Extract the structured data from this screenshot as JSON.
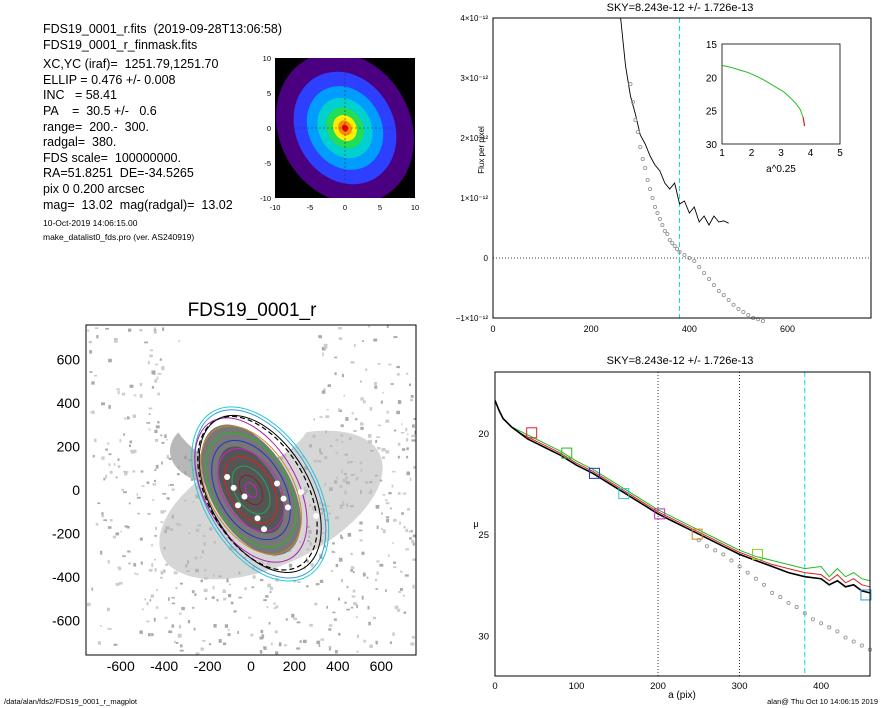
{
  "header": {
    "lines": [
      "FDS19_0001_r.fits  (2019-09-28T13:06:58)",
      "FDS19_0001_r_finmask.fits",
      "XC,YC (iraf)=  1251.79,1251.70",
      "ELLIP = 0.476 +/- 0.008",
      "INC   = 58.41",
      "PA    =  30.5 +/-   0.6",
      "range=  200.-  300.",
      "radgal=  380.",
      "FDS scale=  100000000.",
      "RA=51.8251  DE=-34.5265",
      "pix 0 0.200 arcsec",
      "mag=  13.02  mag(radgal)=  13.02"
    ],
    "date_line": "10-Oct-2019 14:06:15.00",
    "program_line": "make_datalist0_fds.pro (ver. AS240919)"
  },
  "footer": {
    "path": "/data/alan/fds2/FDS19_0001_r_magplot",
    "stamp": "alan@  Thu Oct 10 14:06:15 2019"
  },
  "colors": {
    "sky_line": "#00e0e0",
    "growth": "#22bb22",
    "profile_red": "#dd2222",
    "profile_black": "#000000",
    "profile_grey": "#888888"
  },
  "chart_data": [
    {
      "type": "heatmap",
      "id": "thumbnail",
      "xticks": [
        "-10",
        "-5",
        "0",
        "5",
        "10"
      ],
      "yticks": [
        "10",
        "5",
        "0",
        "-5",
        "-10"
      ],
      "xlim": [
        -10,
        10
      ],
      "ylim": [
        -10,
        10
      ],
      "levels": [
        "#4b0082",
        "#2d40ff",
        "#009dff",
        "#00d0d0",
        "#22dd55",
        "#ffee00",
        "#ff8800",
        "#ee0000"
      ]
    },
    {
      "type": "scatter",
      "id": "image",
      "title": "FDS19_0001_r",
      "xticks": [
        "-600",
        "-400",
        "-200",
        "0",
        "200",
        "400",
        "600"
      ],
      "yticks": [
        "600",
        "400",
        "200",
        "0",
        "-200",
        "-400",
        "-600"
      ],
      "xlim": [
        -760,
        760
      ],
      "ylim": [
        -760,
        760
      ]
    },
    {
      "type": "line",
      "id": "flux",
      "title": "SKY=8.243e-12 +/- 1.726e-13",
      "ylabel": "Flux per pixel",
      "xlim": [
        0,
        770
      ],
      "ylim": [
        -1e-12,
        4e-12
      ],
      "xticks": [
        "0",
        "200",
        "400",
        "600"
      ],
      "yticks": [
        "4×10⁻¹²",
        "3×10⁻¹²",
        "2×10⁻¹²",
        "1×10⁻¹²",
        "0",
        "−1×10⁻¹²"
      ],
      "sky_radius": 380,
      "series": [
        {
          "values_x": [
            260,
            270,
            280,
            290,
            300,
            310,
            320,
            330,
            340,
            350,
            360,
            370,
            380,
            390,
            400,
            410,
            420,
            430,
            440,
            450,
            460,
            470,
            480
          ],
          "values_y": [
            4e-12,
            3.2e-12,
            2.7e-12,
            2.4e-12,
            2.05e-12,
            1.9e-12,
            1.7e-12,
            1.55e-12,
            1.45e-12,
            1.25e-12,
            1.15e-12,
            1.25e-12,
            9e-13,
            9.5e-13,
            7.5e-13,
            8.5e-13,
            6e-13,
            7e-13,
            5.5e-13,
            7e-13,
            6e-13,
            6.2e-13,
            5.8e-13
          ]
        },
        {
          "values_x": [
            280,
            285,
            290,
            295,
            300,
            305,
            310,
            315,
            320,
            325,
            330,
            335,
            340,
            345,
            350,
            355,
            360,
            365,
            370,
            375,
            380,
            390,
            400,
            410,
            420,
            430,
            440,
            450,
            460,
            470,
            480,
            490,
            500,
            510,
            520,
            530,
            540,
            550
          ],
          "values_y": [
            2.9e-12,
            2.6e-12,
            2.3e-12,
            2.1e-12,
            1.85e-12,
            1.65e-12,
            1.5e-12,
            1.3e-12,
            1.15e-12,
            1e-12,
            8.5e-13,
            7.5e-13,
            6.5e-13,
            5.5e-13,
            4.5e-13,
            4e-13,
            3e-13,
            2.5e-13,
            2e-13,
            1.5e-13,
            1e-13,
            5e-14,
            0.0,
            -5e-14,
            -1.5e-13,
            -2.5e-13,
            -3.5e-13,
            -4.5e-13,
            -5.5e-13,
            -6.2e-13,
            -7e-13,
            -7.8e-13,
            -8.5e-13,
            -9e-13,
            -9.5e-13,
            -1e-12,
            -1.02e-12,
            -1.05e-12
          ]
        }
      ]
    },
    {
      "type": "line",
      "id": "inset",
      "xlabel": "a^0.25",
      "xlim": [
        1,
        5
      ],
      "ylim": [
        15,
        30
      ],
      "xticks": [
        "1",
        "2",
        "3",
        "4",
        "5"
      ],
      "yticks": [
        "15",
        "20",
        "25",
        "30"
      ],
      "series": [
        {
          "x": [
            1.0,
            1.3,
            1.6,
            1.9,
            2.2,
            2.5,
            2.8,
            3.1,
            3.3,
            3.5,
            3.65,
            3.75,
            3.8
          ],
          "y": [
            18.2,
            18.5,
            18.9,
            19.3,
            19.9,
            20.6,
            21.4,
            22.2,
            23.0,
            23.9,
            24.8,
            26.0,
            27.3
          ]
        }
      ]
    },
    {
      "type": "line",
      "id": "surface",
      "title": "SKY=8.243e-12 +/- 1.726e-13",
      "xlabel": "a (pix)",
      "ylabel": "μ",
      "xlim": [
        0,
        460
      ],
      "ylim": [
        32,
        17
      ],
      "xticks": [
        "0",
        "100",
        "200",
        "300",
        "400"
      ],
      "yticks": [
        "20",
        "25",
        "30"
      ],
      "range_lines": [
        200,
        300
      ],
      "sky_radius": 380,
      "series": [
        {
          "name": "",
          "x": [
            0,
            5,
            10,
            20,
            30,
            40,
            50,
            60,
            80,
            100,
            120,
            140,
            160,
            180,
            200,
            220,
            240,
            260,
            280,
            300,
            320,
            340,
            360,
            380,
            400,
            410,
            420,
            430,
            440,
            450,
            460
          ],
          "y": [
            18.4,
            18.9,
            19.3,
            19.7,
            19.9,
            20.1,
            20.3,
            20.5,
            20.9,
            21.4,
            21.8,
            22.3,
            22.8,
            23.3,
            23.8,
            24.2,
            24.6,
            25.0,
            25.4,
            25.8,
            26.1,
            26.3,
            26.5,
            26.7,
            26.6,
            27.1,
            26.7,
            27.1,
            26.9,
            27.2,
            27.3
          ]
        },
        {
          "name": "",
          "x": [
            0,
            5,
            10,
            20,
            30,
            40,
            50,
            60,
            80,
            100,
            120,
            140,
            160,
            180,
            200,
            220,
            240,
            260,
            280,
            300,
            320,
            340,
            360,
            380,
            400,
            410,
            420,
            430,
            440,
            450,
            460
          ],
          "y": [
            18.4,
            18.9,
            19.3,
            19.7,
            20.0,
            20.2,
            20.4,
            20.6,
            21.0,
            21.5,
            21.9,
            22.4,
            22.9,
            23.4,
            23.9,
            24.3,
            24.7,
            25.1,
            25.5,
            25.9,
            26.2,
            26.5,
            26.7,
            26.9,
            27.0,
            27.3,
            27.0,
            27.4,
            27.2,
            27.5,
            27.6
          ]
        },
        {
          "name": "",
          "x": [
            0,
            5,
            10,
            20,
            30,
            40,
            50,
            60,
            80,
            100,
            120,
            140,
            160,
            180,
            200,
            220,
            240,
            260,
            280,
            300,
            320,
            340,
            360,
            380,
            400,
            410,
            420,
            430,
            440,
            450,
            460
          ],
          "y": [
            18.4,
            18.9,
            19.3,
            19.7,
            20.0,
            20.3,
            20.5,
            20.7,
            21.1,
            21.6,
            22.0,
            22.5,
            23.0,
            23.5,
            24.0,
            24.4,
            24.8,
            25.2,
            25.6,
            26.0,
            26.3,
            26.6,
            26.9,
            27.1,
            27.2,
            27.5,
            27.3,
            27.6,
            27.5,
            27.8,
            27.9
          ]
        }
      ],
      "points": {
        "x": [
          250,
          260,
          270,
          280,
          290,
          300,
          310,
          320,
          330,
          340,
          350,
          360,
          370,
          380,
          390,
          400,
          410,
          420,
          430,
          440,
          450,
          460
        ],
        "y": [
          25.3,
          25.6,
          25.8,
          26.0,
          26.3,
          26.6,
          26.9,
          27.2,
          27.5,
          27.9,
          28.1,
          28.4,
          28.6,
          28.9,
          29.2,
          29.4,
          29.6,
          29.8,
          30.1,
          30.3,
          30.5,
          30.7
        ]
      },
      "markers": [
        {
          "x": 45,
          "y": 20.0,
          "color": "#dd2222"
        },
        {
          "x": 88,
          "y": 21.0,
          "color": "#22bb22"
        },
        {
          "x": 122,
          "y": 22.0,
          "color": "#2233cc"
        },
        {
          "x": 158,
          "y": 23.0,
          "color": "#22cccc"
        },
        {
          "x": 202,
          "y": 24.0,
          "color": "#cc22cc"
        },
        {
          "x": 248,
          "y": 25.0,
          "color": "#cc8822"
        },
        {
          "x": 322,
          "y": 26.0,
          "color": "#88cc22"
        },
        {
          "x": 455,
          "y": 28.0,
          "color": "#3399dd"
        }
      ]
    }
  ]
}
